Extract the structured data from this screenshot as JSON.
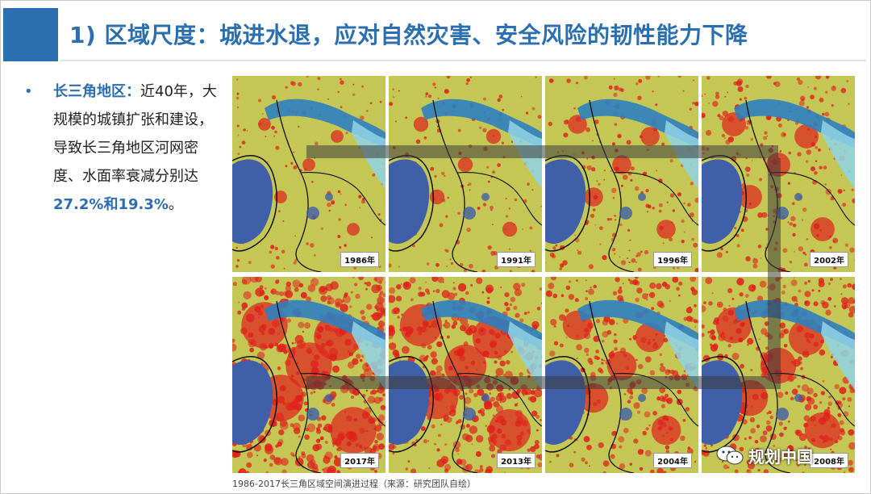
{
  "title": "1) 区域尺度：城进水退，应对自然灾害、安全风险的韧性能力下降",
  "bullet": {
    "marker": "•",
    "head": "长三角地区：",
    "body_before": "近40年，大规模的城镇扩张和建设，导致长三角地区河网密度、水面率衰减分别达",
    "num": "27.2%和19.3%",
    "body_after": "。"
  },
  "maps": [
    {
      "year": "1986年",
      "urban": 0.15
    },
    {
      "year": "1991年",
      "urban": 0.2
    },
    {
      "year": "1996年",
      "urban": 0.3
    },
    {
      "year": "2002年",
      "urban": 0.42
    },
    {
      "year": "2017年",
      "urban": 0.95
    },
    {
      "year": "2013年",
      "urban": 0.85
    },
    {
      "year": "2004年",
      "urban": 0.55
    },
    {
      "year": "2008年",
      "urban": 0.7
    }
  ],
  "caption": "1986-2017长三角区域空间演进过程（来源：研究团队自绘）",
  "watermark": "规划中国",
  "colors": {
    "accent": "#2b6fb0",
    "urban": "#e0201c",
    "land": "#d8cf5a",
    "water": "#3f5fa8"
  }
}
